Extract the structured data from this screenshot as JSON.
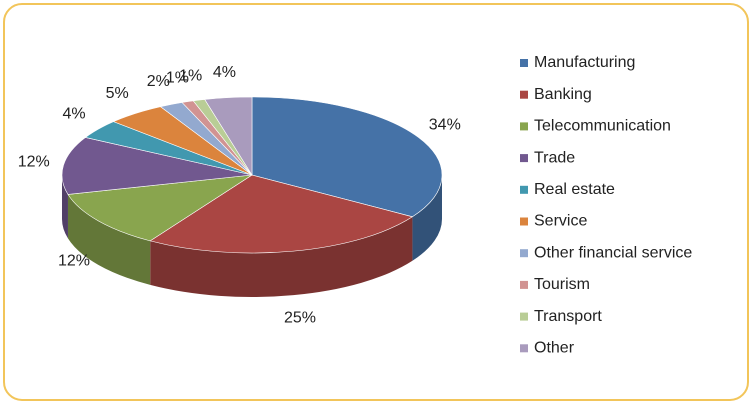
{
  "chart_data": {
    "type": "pie",
    "categories": [
      "Manufacturing",
      "Banking",
      "Telecommunication",
      "Trade",
      "Real estate",
      "Service",
      "Other financial service",
      "Tourism",
      "Transport",
      "Other"
    ],
    "values": [
      34,
      25,
      12,
      12,
      4,
      5,
      2,
      1,
      1,
      4
    ],
    "value_labels": [
      "34%",
      "25%",
      "12%",
      "12%",
      "4%",
      "5%",
      "2%",
      "1%",
      "1%",
      "4%"
    ],
    "colors": [
      "#4572a7",
      "#aa4643",
      "#89a54e",
      "#71588f",
      "#4198af",
      "#db843d",
      "#93a9cf",
      "#d19392",
      "#b9cd96",
      "#a99bbd"
    ],
    "legend": "right"
  }
}
